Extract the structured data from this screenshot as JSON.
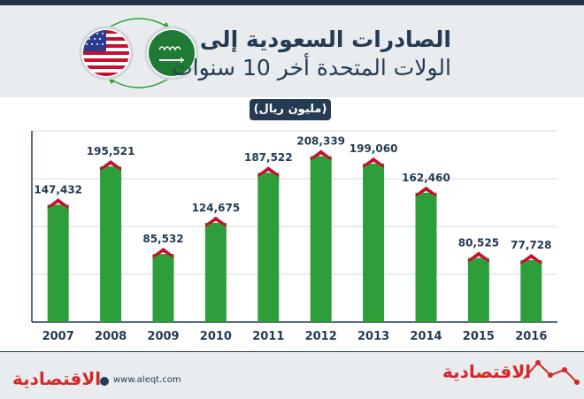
{
  "header": {
    "title_line1": "الصادرات السعودية إلى",
    "title_line2": "الولات المتحدة أخر 10 سنوات",
    "unit": "(مليون ريال)"
  },
  "chart_data": {
    "type": "bar",
    "title": "الصادرات السعودية إلى الولات المتحدة أخر 10 سنوات",
    "ylabel": "(مليون ريال)",
    "xlabel": "",
    "categories": [
      "2007",
      "2008",
      "2009",
      "2010",
      "2011",
      "2012",
      "2013",
      "2014",
      "2015",
      "2016"
    ],
    "values": [
      147432,
      195521,
      85532,
      124675,
      187522,
      208339,
      199060,
      162460,
      80525,
      77728
    ],
    "value_labels": [
      "147,432",
      "195,521",
      "85,532",
      "124,675",
      "187,522",
      "208,339",
      "199,060",
      "162,460",
      "80,525",
      "77,728"
    ],
    "ylim": [
      0,
      240000
    ],
    "grid": true,
    "colors": {
      "bar": "#2e9e3a",
      "cap": "#c8102e"
    }
  },
  "footer": {
    "website": "www.aleqt.com",
    "logo_left": "الاقتصادية",
    "logo_right": "الاقتصادية"
  },
  "colors": {
    "navy": "#243b53",
    "band": "#e9ecef",
    "green": "#2e9e3a",
    "red": "#c8102e"
  },
  "icons": {
    "usa_flag": "usa-flag-icon",
    "saudi_flag": "saudi-flag-icon",
    "exchange_arrows": "exchange-arrows-icon"
  }
}
